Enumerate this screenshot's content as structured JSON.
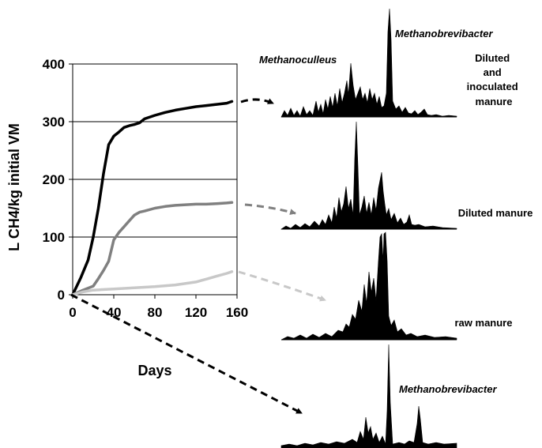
{
  "chart_data": {
    "type": "line",
    "xlabel": "Days",
    "ylabel": "L CH4/kg initial VM",
    "xlim": [
      0,
      160
    ],
    "ylim": [
      0,
      400
    ],
    "xticks": [
      "0",
      "40",
      "80",
      "120",
      "160"
    ],
    "yticks": [
      "0",
      "100",
      "200",
      "300",
      "400"
    ],
    "grid": "horizontal",
    "series": [
      {
        "color": "#000000",
        "x": [
          0,
          8,
          15,
          20,
          25,
          30,
          35,
          40,
          45,
          50,
          55,
          60,
          65,
          70,
          80,
          90,
          100,
          110,
          120,
          130,
          140,
          150,
          155
        ],
        "y": [
          0,
          30,
          60,
          100,
          150,
          210,
          260,
          275,
          282,
          290,
          293,
          295,
          298,
          305,
          311,
          316,
          320,
          323,
          326,
          328,
          330,
          332,
          335
        ]
      },
      {
        "color": "#808080",
        "x": [
          0,
          10,
          20,
          25,
          30,
          35,
          40,
          45,
          50,
          55,
          60,
          65,
          70,
          80,
          90,
          100,
          110,
          120,
          130,
          140,
          150,
          155
        ],
        "y": [
          0,
          8,
          15,
          28,
          42,
          58,
          95,
          108,
          118,
          128,
          138,
          143,
          145,
          150,
          153,
          155,
          156,
          157,
          157,
          158,
          159,
          160
        ]
      },
      {
        "color": "#c8c8c8",
        "x": [
          0,
          10,
          20,
          40,
          60,
          80,
          100,
          120,
          130,
          140,
          150,
          155
        ],
        "y": [
          0,
          5,
          8,
          10,
          12,
          14,
          17,
          22,
          27,
          32,
          37,
          40
        ]
      }
    ],
    "panels": [
      {
        "label": "Diluted\nand\ninoculated\nmanure",
        "annotations": [
          "Methanobrevibacter",
          "Methanoculleus"
        ]
      },
      {
        "label": "Diluted manure",
        "annotations": []
      },
      {
        "label": "raw manure",
        "annotations": []
      },
      {
        "label": "",
        "annotations": [
          "Methanobrevibacter"
        ]
      }
    ]
  }
}
